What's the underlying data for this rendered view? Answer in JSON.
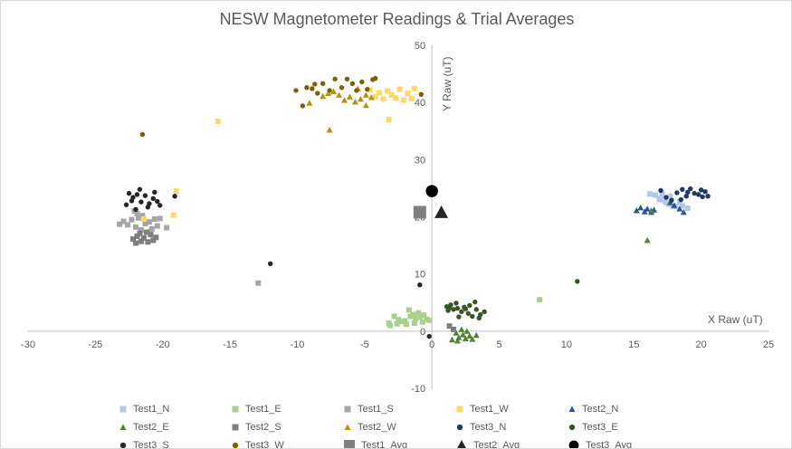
{
  "chart_data": {
    "type": "scatter",
    "title": "NESW Magnetometer Readings & Trial Averages",
    "xlabel": "X Raw (uT)",
    "ylabel": "Y Raw (uT)",
    "xlim": [
      -30,
      25
    ],
    "ylim": [
      -10,
      50
    ],
    "xticks": [
      -30,
      -25,
      -20,
      -15,
      -10,
      -5,
      0,
      5,
      10,
      15,
      20,
      25
    ],
    "yticks": [
      -10,
      0,
      10,
      20,
      30,
      40,
      50
    ],
    "legend_position": "bottom",
    "series": [
      {
        "name": "Test1_N",
        "marker": "square",
        "size": 6,
        "color": "#b4c7e7",
        "points": [
          [
            16.2,
            24.0
          ],
          [
            16.6,
            23.8
          ],
          [
            17.0,
            23.2
          ],
          [
            17.3,
            22.8
          ],
          [
            17.6,
            22.2
          ],
          [
            17.9,
            21.9
          ],
          [
            17.1,
            24.1
          ],
          [
            18.4,
            22.6
          ],
          [
            18.1,
            21.8
          ],
          [
            17.7,
            23.6
          ],
          [
            18.6,
            21.9
          ],
          [
            16.9,
            23.0
          ],
          [
            19.0,
            21.5
          ],
          [
            17.4,
            22.5
          ]
        ]
      },
      {
        "name": "Test1_E",
        "marker": "square",
        "size": 6,
        "color": "#a9d18e",
        "points": [
          [
            -2.0,
            1.8
          ],
          [
            -1.7,
            3.7
          ],
          [
            -1.6,
            2.6
          ],
          [
            -1.4,
            2.9
          ],
          [
            -1.2,
            2.2
          ],
          [
            -0.9,
            2.5
          ],
          [
            -0.6,
            2.8
          ],
          [
            -0.4,
            2.1
          ],
          [
            -2.2,
            1.7
          ],
          [
            -2.5,
            2.0
          ],
          [
            -2.8,
            2.6
          ],
          [
            -3.1,
            1.0
          ],
          [
            -1.3,
            1.4
          ],
          [
            -0.2,
            1.9
          ],
          [
            -1.9,
            1.2
          ],
          [
            -1.0,
            3.2
          ],
          [
            -2.6,
            1.3
          ],
          [
            -0.7,
            1.6
          ],
          [
            -3.2,
            1.4
          ],
          [
            8.0,
            5.5
          ]
        ]
      },
      {
        "name": "Test1_S",
        "marker": "square",
        "size": 6,
        "color": "#a6a6a6",
        "points": [
          [
            -23.2,
            18.7
          ],
          [
            -22.9,
            19.2
          ],
          [
            -22.6,
            18.6
          ],
          [
            -22.3,
            19.5
          ],
          [
            -22.0,
            18.2
          ],
          [
            -21.8,
            19.8
          ],
          [
            -21.5,
            20.2
          ],
          [
            -21.3,
            18.8
          ],
          [
            -21.0,
            19.1
          ],
          [
            -20.8,
            17.9
          ],
          [
            -20.6,
            19.6
          ],
          [
            -20.4,
            18.4
          ],
          [
            -22.1,
            21.0
          ],
          [
            -21.6,
            17.7
          ],
          [
            -20.2,
            19.7
          ],
          [
            -19.7,
            18.1
          ],
          [
            -21.9,
            20.6
          ],
          [
            -20.9,
            17.4
          ],
          [
            -12.9,
            8.4
          ]
        ]
      },
      {
        "name": "Test1_W",
        "marker": "square",
        "size": 6,
        "color": "#ffd966",
        "points": [
          [
            -4.6,
            42.2
          ],
          [
            -4.2,
            41.0
          ],
          [
            -3.9,
            41.7
          ],
          [
            -3.6,
            40.6
          ],
          [
            -3.3,
            42.0
          ],
          [
            -3.0,
            41.3
          ],
          [
            -2.7,
            40.8
          ],
          [
            -2.4,
            42.3
          ],
          [
            -2.1,
            40.4
          ],
          [
            -1.8,
            41.6
          ],
          [
            -1.5,
            40.7
          ],
          [
            -1.3,
            42.4
          ],
          [
            -3.2,
            37.0
          ],
          [
            -15.9,
            36.7
          ],
          [
            -19.2,
            20.3
          ],
          [
            -21.4,
            19.6
          ],
          [
            -19.0,
            24.5
          ]
        ]
      },
      {
        "name": "Test2_N",
        "marker": "triangle",
        "size": 7,
        "color": "#2f5597",
        "points": [
          [
            15.2,
            21.1
          ],
          [
            15.5,
            21.6
          ],
          [
            15.8,
            20.9
          ],
          [
            16.0,
            21.4
          ],
          [
            16.3,
            20.8
          ],
          [
            17.7,
            22.5
          ],
          [
            18.0,
            22.0
          ],
          [
            18.4,
            21.4
          ],
          [
            18.7,
            20.8
          ],
          [
            16.5,
            21.2
          ]
        ]
      },
      {
        "name": "Test2_E",
        "marker": "triangle",
        "size": 7,
        "color": "#548235",
        "points": [
          [
            1.8,
            -0.3
          ],
          [
            2.0,
            -1.1
          ],
          [
            2.3,
            -0.6
          ],
          [
            2.5,
            -1.3
          ],
          [
            2.8,
            -0.8
          ],
          [
            3.0,
            -1.4
          ],
          [
            2.2,
            0.3
          ],
          [
            1.5,
            -1.5
          ],
          [
            3.3,
            -0.7
          ],
          [
            1.9,
            -1.7
          ],
          [
            2.6,
            0.0
          ],
          [
            16.0,
            15.9
          ],
          [
            16.3,
            21.1
          ]
        ]
      },
      {
        "name": "Test2_S",
        "marker": "square",
        "size": 6,
        "color": "#7f7f7f",
        "points": [
          [
            -22.2,
            16.1
          ],
          [
            -21.9,
            16.6
          ],
          [
            -21.6,
            15.7
          ],
          [
            -21.4,
            16.3
          ],
          [
            -21.1,
            15.6
          ],
          [
            -20.9,
            16.9
          ],
          [
            -20.7,
            15.9
          ],
          [
            -21.2,
            17.3
          ],
          [
            -22.0,
            15.4
          ],
          [
            -20.5,
            16.4
          ],
          [
            -21.7,
            17.1
          ],
          [
            1.3,
            0.9
          ],
          [
            1.6,
            0.3
          ]
        ]
      },
      {
        "name": "Test2_W",
        "marker": "triangle",
        "size": 7,
        "color": "#bf9000",
        "points": [
          [
            -8.1,
            41.1
          ],
          [
            -7.7,
            41.6
          ],
          [
            -7.3,
            41.9
          ],
          [
            -6.9,
            41.3
          ],
          [
            -6.5,
            40.4
          ],
          [
            -6.1,
            41.0
          ],
          [
            -5.7,
            40.1
          ],
          [
            -5.3,
            40.6
          ],
          [
            -4.9,
            41.3
          ],
          [
            -4.5,
            40.9
          ],
          [
            -9.1,
            39.9
          ],
          [
            -4.9,
            39.5
          ],
          [
            -7.6,
            35.2
          ],
          [
            -5.5,
            42.4
          ]
        ]
      },
      {
        "name": "Test3_N",
        "marker": "circle",
        "size": 6,
        "color": "#203864",
        "points": [
          [
            17.0,
            24.6
          ],
          [
            17.4,
            23.4
          ],
          [
            17.8,
            22.9
          ],
          [
            18.2,
            24.2
          ],
          [
            18.6,
            24.8
          ],
          [
            18.9,
            23.6
          ],
          [
            19.2,
            24.9
          ],
          [
            19.5,
            24.1
          ],
          [
            19.8,
            23.9
          ],
          [
            20.1,
            23.5
          ],
          [
            20.3,
            24.4
          ],
          [
            20.5,
            23.6
          ],
          [
            18.5,
            23.0
          ],
          [
            19.0,
            24.3
          ],
          [
            20.0,
            24.7
          ]
        ]
      },
      {
        "name": "Test3_E",
        "marker": "circle",
        "size": 6,
        "color": "#375623",
        "points": [
          [
            1.1,
            4.3
          ],
          [
            1.4,
            4.6
          ],
          [
            1.6,
            3.8
          ],
          [
            1.9,
            4.0
          ],
          [
            2.2,
            3.4
          ],
          [
            2.4,
            4.2
          ],
          [
            2.7,
            3.1
          ],
          [
            3.0,
            2.6
          ],
          [
            3.3,
            3.8
          ],
          [
            3.6,
            2.9
          ],
          [
            3.9,
            3.4
          ],
          [
            1.2,
            3.6
          ],
          [
            1.8,
            4.9
          ],
          [
            2.5,
            3.9
          ],
          [
            3.2,
            5.1
          ],
          [
            2.0,
            2.5
          ],
          [
            10.8,
            8.7
          ],
          [
            1.3,
            4.1
          ],
          [
            2.8,
            4.5
          ],
          [
            3.5,
            2.3
          ]
        ]
      },
      {
        "name": "Test3_S",
        "marker": "circle",
        "size": 6,
        "color": "#262626",
        "points": [
          [
            -22.5,
            24.1
          ],
          [
            -22.2,
            23.4
          ],
          [
            -21.9,
            23.9
          ],
          [
            -21.6,
            22.6
          ],
          [
            -21.3,
            23.7
          ],
          [
            -21.0,
            22.3
          ],
          [
            -20.7,
            23.2
          ],
          [
            -20.4,
            22.7
          ],
          [
            -22.7,
            22.1
          ],
          [
            -21.1,
            21.7
          ],
          [
            -20.2,
            22.0
          ],
          [
            -22.0,
            21.3
          ],
          [
            -19.1,
            23.6
          ],
          [
            -21.7,
            24.8
          ],
          [
            -20.6,
            24.3
          ],
          [
            -12.0,
            11.8
          ],
          [
            -0.9,
            8.1
          ],
          [
            -0.2,
            -0.9
          ],
          [
            -22.3,
            22.8
          ]
        ]
      },
      {
        "name": "Test3_W",
        "marker": "circle",
        "size": 6,
        "color": "#7f6000",
        "points": [
          [
            -10.1,
            42.1
          ],
          [
            -9.6,
            39.4
          ],
          [
            -9.3,
            42.6
          ],
          [
            -8.9,
            42.4
          ],
          [
            -8.5,
            41.6
          ],
          [
            -8.1,
            43.3
          ],
          [
            -7.6,
            42.1
          ],
          [
            -7.2,
            44.1
          ],
          [
            -6.7,
            42.6
          ],
          [
            -6.3,
            44.1
          ],
          [
            -5.9,
            43.3
          ],
          [
            -5.6,
            42.1
          ],
          [
            -5.2,
            43.6
          ],
          [
            -4.8,
            42.3
          ],
          [
            -4.4,
            44.0
          ],
          [
            -4.2,
            44.2
          ],
          [
            -8.7,
            43.2
          ],
          [
            -21.5,
            34.4
          ],
          [
            -0.8,
            41.4
          ]
        ]
      },
      {
        "name": "Test1_Avg",
        "marker": "square",
        "size": 14,
        "color": "#7f7f7f",
        "points": [
          [
            -0.9,
            20.8
          ]
        ]
      },
      {
        "name": "Test2_Avg",
        "marker": "triangle",
        "size": 15,
        "color": "#262626",
        "points": [
          [
            0.7,
            20.8
          ]
        ]
      },
      {
        "name": "Test3_Avg",
        "marker": "circle",
        "size": 15,
        "color": "#000000",
        "points": [
          [
            0.0,
            24.5
          ]
        ]
      }
    ]
  }
}
